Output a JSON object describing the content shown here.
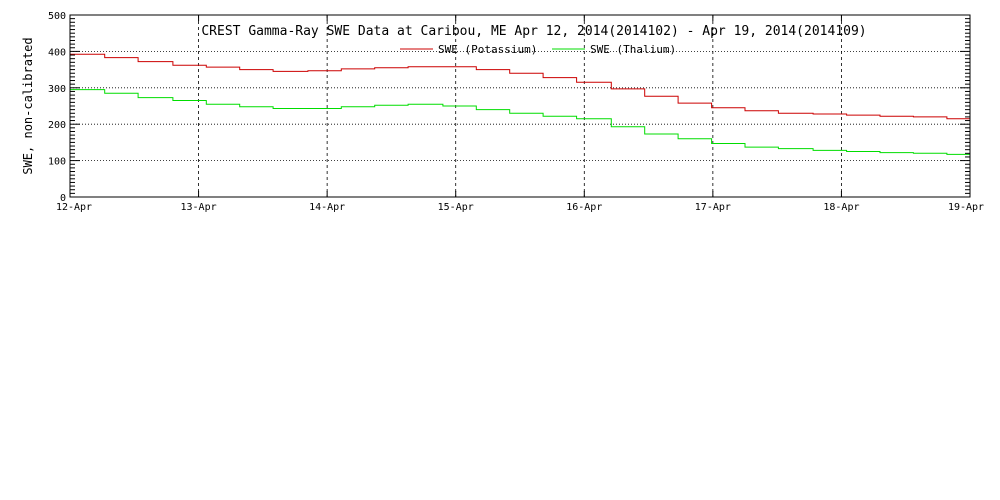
{
  "chart_data": {
    "type": "line",
    "title": "CREST Gamma-Ray SWE Data at Caribou, ME   Apr 12, 2014(2014102) - Apr 19, 2014(2014109)",
    "xlabel": "",
    "ylabel": "SWE, non-calibrated",
    "x_ticks": [
      "12-Apr",
      "13-Apr",
      "14-Apr",
      "15-Apr",
      "16-Apr",
      "17-Apr",
      "18-Apr",
      "19-Apr"
    ],
    "x_range_days": [
      0,
      7
    ],
    "ylim": [
      0,
      500
    ],
    "y_ticks": [
      "0",
      "100",
      "200",
      "300",
      "400",
      "500"
    ],
    "grid": true,
    "legend_position": "top-center",
    "series": [
      {
        "name": "SWE (Potassium)",
        "color": "#cc0000",
        "x_days": [
          0.0,
          0.27,
          0.53,
          0.8,
          1.06,
          1.32,
          1.58,
          1.85,
          2.11,
          2.37,
          2.63,
          2.9,
          3.16,
          3.42,
          3.68,
          3.94,
          4.21,
          4.47,
          4.73,
          4.99,
          5.25,
          5.51,
          5.78,
          6.04,
          6.3,
          6.56,
          6.82,
          7.0
        ],
        "values": [
          392,
          383,
          372,
          362,
          357,
          350,
          345,
          347,
          352,
          355,
          358,
          358,
          350,
          340,
          328,
          315,
          297,
          277,
          258,
          245,
          237,
          230,
          228,
          225,
          222,
          220,
          215,
          210
        ]
      },
      {
        "name": "SWE (Thalium)",
        "color": "#00dd00",
        "x_days": [
          0.0,
          0.27,
          0.53,
          0.8,
          1.06,
          1.32,
          1.58,
          1.85,
          2.11,
          2.37,
          2.63,
          2.9,
          3.16,
          3.42,
          3.68,
          3.94,
          4.21,
          4.47,
          4.73,
          4.99,
          5.25,
          5.51,
          5.78,
          6.04,
          6.3,
          6.56,
          6.82,
          7.0
        ],
        "values": [
          295,
          285,
          273,
          265,
          255,
          248,
          243,
          243,
          248,
          252,
          255,
          250,
          240,
          230,
          222,
          215,
          193,
          173,
          160,
          147,
          137,
          133,
          128,
          125,
          122,
          120,
          117,
          113
        ]
      }
    ]
  }
}
